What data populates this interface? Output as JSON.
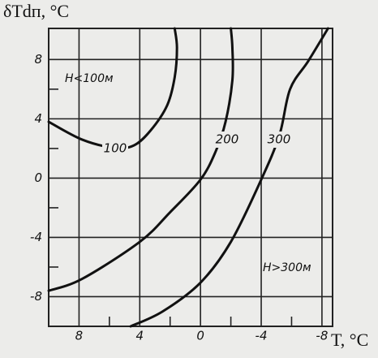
{
  "chart_data": {
    "type": "line",
    "y_label": "δTdп, °C",
    "x_label": "T, °C",
    "annotations": [
      "H<100м",
      "H>300м"
    ],
    "xlim": [
      10,
      -8.7
    ],
    "ylim": [
      -10,
      10.1
    ],
    "xticks": [
      8,
      4,
      0,
      -4,
      -8
    ],
    "yticks": [
      8,
      4,
      0,
      -4,
      -8
    ],
    "xminor": [
      6,
      2,
      -2,
      -6
    ],
    "yminor": [
      6,
      2,
      -2,
      -6
    ],
    "grid": true,
    "series": [
      {
        "name": "100",
        "color": "#111111",
        "x": [
          10,
          7.8,
          5.7,
          4.4,
          3.3,
          2.2,
          1.7,
          1.55,
          1.7
        ],
        "values": [
          3.8,
          2.6,
          2.05,
          2.2,
          3.2,
          4.9,
          6.8,
          8.8,
          10.1
        ]
      },
      {
        "name": "200",
        "color": "#111111",
        "x": [
          10,
          7.8,
          4,
          2,
          0,
          -1,
          -1.65,
          -2.1,
          -2.1,
          -2
        ],
        "values": [
          -7.6,
          -6.8,
          -4.3,
          -2.3,
          -0.1,
          1.8,
          3.8,
          6.6,
          8.8,
          10.1
        ]
      },
      {
        "name": "300",
        "color": "#111111",
        "x": [
          4.6,
          2.5,
          0,
          -2,
          -4,
          -5.2,
          -5.9,
          -7.1,
          -8.4
        ],
        "values": [
          -10,
          -9,
          -7.05,
          -4.3,
          -0.1,
          2.9,
          6,
          7.9,
          10.1
        ]
      }
    ]
  }
}
